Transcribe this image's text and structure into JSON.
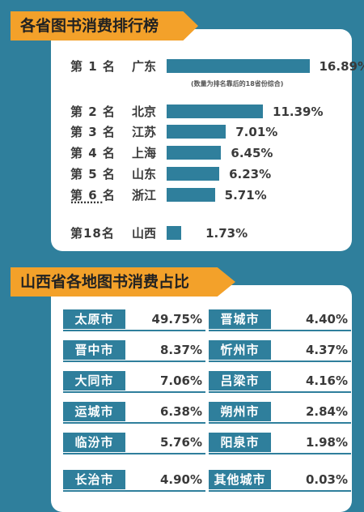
{
  "ranking_title": "各省图书消费排行榜",
  "ranking_note": "(数量为排名靠后的18省份综合)",
  "ellipsis": "……….",
  "city_title": "山西省各地图书消费占比",
  "colors": {
    "background": "#2f7f9c",
    "banner": "#f3a12a",
    "bar": "#2f7f9c",
    "panel": "#ffffff"
  },
  "chart_data": [
    {
      "type": "bar",
      "orientation": "horizontal",
      "title": "各省图书消费排行榜",
      "rows": [
        {
          "rank": "第 1 名",
          "province": "广东",
          "value": 16.89,
          "label": "16.89%"
        },
        {
          "rank": "第 2 名",
          "province": "北京",
          "value": 11.39,
          "label": "11.39%"
        },
        {
          "rank": "第 3 名",
          "province": "江苏",
          "value": 7.01,
          "label": "7.01%"
        },
        {
          "rank": "第 4 名",
          "province": "上海",
          "value": 6.45,
          "label": "6.45%"
        },
        {
          "rank": "第 5 名",
          "province": "山东",
          "value": 6.23,
          "label": "6.23%"
        },
        {
          "rank": "第 6 名",
          "province": "浙江",
          "value": 5.71,
          "label": "5.71%"
        },
        {
          "rank": "第18名",
          "province": "山西",
          "value": 1.73,
          "label": "1.73%"
        }
      ]
    },
    {
      "type": "table",
      "title": "山西省各地图书消费占比",
      "rows": [
        {
          "city": "太原市",
          "value": 49.75,
          "label": "49.75%"
        },
        {
          "city": "晋城市",
          "value": 4.4,
          "label": "4.40%"
        },
        {
          "city": "晋中市",
          "value": 8.37,
          "label": "8.37%"
        },
        {
          "city": "忻州市",
          "value": 4.37,
          "label": "4.37%"
        },
        {
          "city": "大同市",
          "value": 7.06,
          "label": "7.06%"
        },
        {
          "city": "吕梁市",
          "value": 4.16,
          "label": "4.16%"
        },
        {
          "city": "运城市",
          "value": 6.38,
          "label": "6.38%"
        },
        {
          "city": "朔州市",
          "value": 2.84,
          "label": "2.84%"
        },
        {
          "city": "临汾市",
          "value": 5.76,
          "label": "5.76%"
        },
        {
          "city": "阳泉市",
          "value": 1.98,
          "label": "1.98%"
        },
        {
          "city": "长治市",
          "value": 4.9,
          "label": "4.90%"
        },
        {
          "city": "其他城市",
          "value": 0.03,
          "label": "0.03%"
        }
      ]
    }
  ]
}
